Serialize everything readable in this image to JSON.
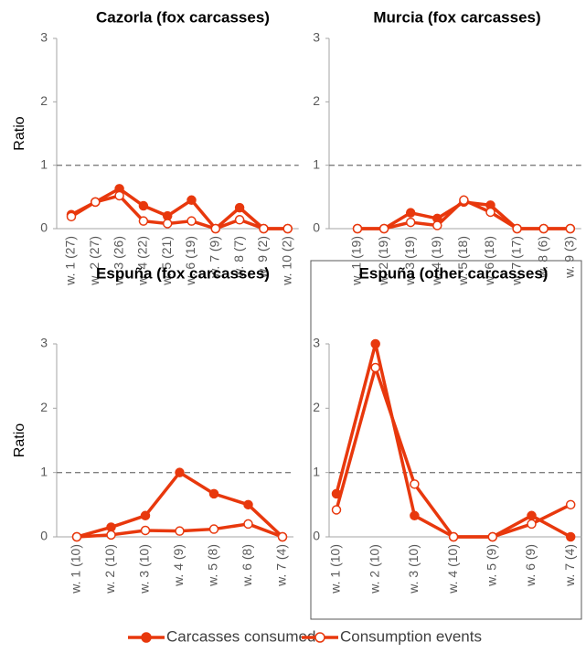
{
  "chart_data": [
    {
      "type": "line",
      "title": "Cazorla (fox carcasses)",
      "ylabel": "Ratio",
      "categories": [
        "w. 1 (27)",
        "w. 2 (27)",
        "w. 3 (26)",
        "w. 4 (22)",
        "w. 5 (21)",
        "w. 6 (19)",
        "w. 7 (9)",
        "w. 8 (7)",
        "w. 9 (2)",
        "w. 10 (2)"
      ],
      "series": [
        {
          "name": "Carcasses consumed",
          "color": "#e8380d",
          "marker": "filled",
          "values": [
            0.22,
            0.42,
            0.63,
            0.36,
            0.2,
            0.45,
            0,
            0.33,
            0,
            0
          ]
        },
        {
          "name": "Consumption events",
          "color": "#e8380d",
          "marker": "hollow",
          "values": [
            0.19,
            0.42,
            0.52,
            0.12,
            0.08,
            0.12,
            0,
            0.14,
            0,
            0
          ]
        }
      ],
      "ylim": [
        0,
        3
      ],
      "yticks": [
        0,
        1,
        2,
        3
      ],
      "reference_line": 1
    },
    {
      "type": "line",
      "title": "Murcia (fox carcasses)",
      "categories": [
        "w. 1 (19)",
        "w. 2 (19)",
        "w. 3 (19)",
        "w. 4 (19)",
        "w. 5 (18)",
        "w. 6 (18)",
        "w. 7 (17)",
        "w. 8 (6)",
        "w. 9 (3)"
      ],
      "series": [
        {
          "color": "#e8380d",
          "marker": "filled",
          "values": [
            0,
            0,
            0.25,
            0.16,
            0.42,
            0.37,
            0,
            0,
            0
          ]
        },
        {
          "color": "#e8380d",
          "marker": "hollow",
          "values": [
            0,
            0,
            0.1,
            0.05,
            0.45,
            0.26,
            0,
            0,
            0
          ]
        }
      ],
      "ylim": [
        0,
        3
      ],
      "yticks": [
        0,
        1,
        2,
        3
      ],
      "reference_line": 1
    },
    {
      "type": "line",
      "title": "Espuña (fox carcasses)",
      "ylabel": "Ratio",
      "categories": [
        "w. 1 (10)",
        "w. 2 (10)",
        "w. 3 (10)",
        "w. 4 (9)",
        "w. 5 (8)",
        "w. 6 (8)",
        "w. 7 (4)"
      ],
      "series": [
        {
          "color": "#e8380d",
          "marker": "filled",
          "values": [
            0,
            0.15,
            0.33,
            1.0,
            0.67,
            0.5,
            0
          ]
        },
        {
          "color": "#e8380d",
          "marker": "hollow",
          "values": [
            0,
            0.03,
            0.1,
            0.09,
            0.12,
            0.2,
            0
          ]
        }
      ],
      "ylim": [
        0,
        3
      ],
      "yticks": [
        0,
        1,
        2,
        3
      ],
      "reference_line": 1
    },
    {
      "type": "line",
      "title": "Espuña (other carcasses)",
      "categories": [
        "w. 1 (10)",
        "w. 2 (10)",
        "w. 3 (10)",
        "w. 4 (10)",
        "w. 5 (9)",
        "w. 6 (9)",
        "w. 7 (4)"
      ],
      "series": [
        {
          "color": "#e8380d",
          "marker": "filled",
          "values": [
            0.67,
            3.0,
            0.33,
            0,
            0,
            0.33,
            0
          ]
        },
        {
          "color": "#e8380d",
          "marker": "hollow",
          "values": [
            0.42,
            2.63,
            0.82,
            0,
            0,
            0.2,
            0.5
          ]
        }
      ],
      "ylim": [
        0,
        3
      ],
      "yticks": [
        0,
        1,
        2,
        3
      ],
      "reference_line": 1
    }
  ]
}
